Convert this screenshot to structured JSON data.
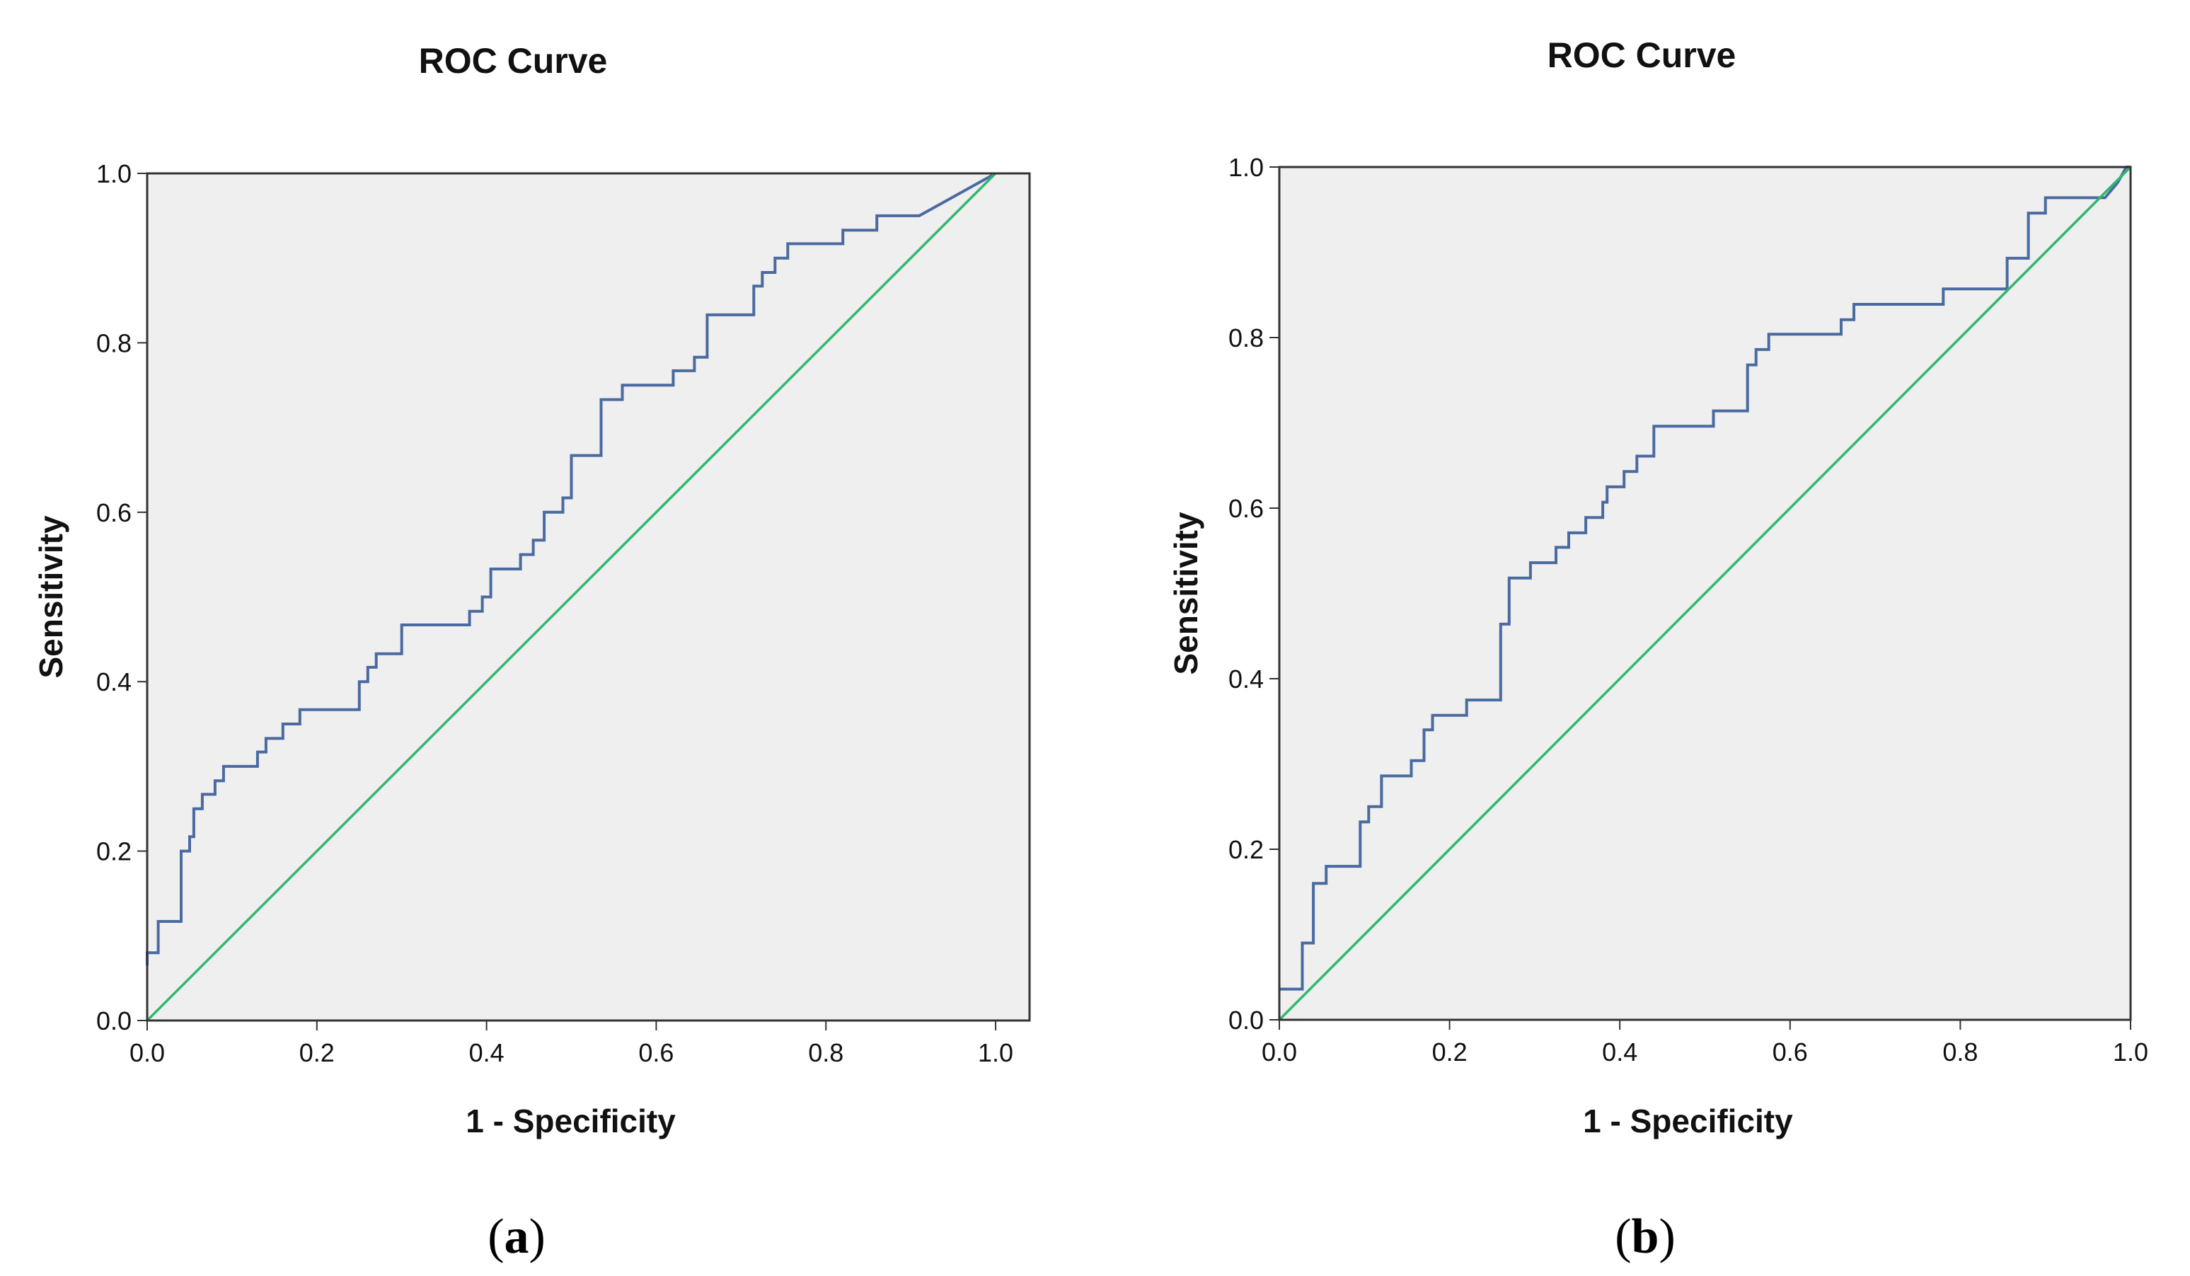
{
  "colors": {
    "plot_background": "#efefef",
    "frame": "#333333",
    "roc_curve": "#4a6aa0",
    "reference_line": "#2fb86e"
  },
  "chart_data": [
    {
      "type": "line",
      "panel": "(a)",
      "panel_letter": "a",
      "title": "ROC Curve",
      "xlabel": "1 - Specificity",
      "ylabel": "Sensitivity",
      "xlim": [
        0,
        1.04
      ],
      "ylim": [
        0,
        1
      ],
      "xticks": [
        "0.0",
        "0.2",
        "0.4",
        "0.6",
        "0.8",
        "1.0"
      ],
      "yticks": [
        "0.0",
        "0.2",
        "0.4",
        "0.6",
        "0.8",
        "1.0"
      ],
      "grid": false,
      "series": [
        {
          "name": "ROC curve",
          "x": [
            0.0,
            0.0,
            0.013,
            0.013,
            0.04,
            0.04,
            0.05,
            0.05,
            0.055,
            0.055,
            0.065,
            0.065,
            0.08,
            0.08,
            0.09,
            0.09,
            0.13,
            0.13,
            0.14,
            0.14,
            0.16,
            0.16,
            0.18,
            0.18,
            0.2,
            0.2,
            0.21,
            0.21,
            0.25,
            0.25,
            0.26,
            0.26,
            0.27,
            0.27,
            0.3,
            0.3,
            0.38,
            0.38,
            0.395,
            0.395,
            0.405,
            0.405,
            0.44,
            0.44,
            0.455,
            0.455,
            0.468,
            0.468,
            0.49,
            0.49,
            0.5,
            0.5,
            0.51,
            0.51,
            0.535,
            0.535,
            0.56,
            0.56,
            0.62,
            0.62,
            0.645,
            0.645,
            0.66,
            0.66,
            0.715,
            0.715,
            0.725,
            0.725,
            0.73,
            0.73,
            0.74,
            0.74,
            0.755,
            0.755,
            0.78,
            0.78,
            0.82,
            0.82,
            0.86,
            0.86,
            0.91,
            1.0
          ],
          "y": [
            0.065,
            0.08,
            0.08,
            0.117,
            0.117,
            0.2,
            0.2,
            0.217,
            0.217,
            0.25,
            0.25,
            0.267,
            0.267,
            0.283,
            0.283,
            0.3,
            0.3,
            0.317,
            0.317,
            0.333,
            0.333,
            0.35,
            0.35,
            0.367,
            0.367,
            0.367,
            0.367,
            0.367,
            0.367,
            0.4,
            0.4,
            0.417,
            0.417,
            0.433,
            0.433,
            0.467,
            0.467,
            0.483,
            0.483,
            0.5,
            0.5,
            0.533,
            0.533,
            0.55,
            0.55,
            0.567,
            0.567,
            0.6,
            0.6,
            0.617,
            0.617,
            0.667,
            0.667,
            0.667,
            0.667,
            0.733,
            0.733,
            0.75,
            0.75,
            0.767,
            0.767,
            0.783,
            0.783,
            0.833,
            0.833,
            0.867,
            0.867,
            0.883,
            0.883,
            0.883,
            0.883,
            0.9,
            0.9,
            0.917,
            0.917,
            0.917,
            0.917,
            0.933,
            0.933,
            0.95,
            0.95,
            1.0
          ]
        },
        {
          "name": "Reference line",
          "x": [
            0.0,
            1.0
          ],
          "y": [
            0.0,
            1.0
          ]
        }
      ]
    },
    {
      "type": "line",
      "panel": "(b)",
      "panel_letter": "b",
      "title": "ROC Curve",
      "xlabel": "1 - Specificity",
      "ylabel": "Sensitivity",
      "xlim": [
        0,
        1.0
      ],
      "ylim": [
        0,
        1
      ],
      "xticks": [
        "0.0",
        "0.2",
        "0.4",
        "0.6",
        "0.8",
        "1.0"
      ],
      "yticks": [
        "0.0",
        "0.2",
        "0.4",
        "0.6",
        "0.8",
        "1.0"
      ],
      "grid": false,
      "series": [
        {
          "name": "ROC curve",
          "x": [
            0.0,
            0.0,
            0.027,
            0.027,
            0.04,
            0.04,
            0.055,
            0.055,
            0.095,
            0.095,
            0.105,
            0.105,
            0.12,
            0.12,
            0.155,
            0.155,
            0.17,
            0.17,
            0.18,
            0.18,
            0.22,
            0.22,
            0.26,
            0.26,
            0.27,
            0.27,
            0.295,
            0.295,
            0.325,
            0.325,
            0.34,
            0.34,
            0.36,
            0.36,
            0.38,
            0.38,
            0.385,
            0.385,
            0.405,
            0.405,
            0.42,
            0.42,
            0.44,
            0.44,
            0.51,
            0.51,
            0.55,
            0.55,
            0.56,
            0.56,
            0.575,
            0.575,
            0.66,
            0.66,
            0.675,
            0.675,
            0.78,
            0.78,
            0.855,
            0.855,
            0.88,
            0.88,
            0.9,
            0.9,
            0.92,
            0.92,
            0.97,
            0.985,
            0.985,
            0.995,
            0.995,
            1.0
          ],
          "y": [
            0.036,
            0.036,
            0.036,
            0.09,
            0.09,
            0.16,
            0.16,
            0.18,
            0.18,
            0.232,
            0.232,
            0.25,
            0.25,
            0.286,
            0.286,
            0.304,
            0.304,
            0.34,
            0.34,
            0.357,
            0.357,
            0.375,
            0.375,
            0.464,
            0.464,
            0.518,
            0.518,
            0.536,
            0.536,
            0.554,
            0.554,
            0.571,
            0.571,
            0.589,
            0.589,
            0.607,
            0.607,
            0.625,
            0.625,
            0.643,
            0.643,
            0.661,
            0.661,
            0.696,
            0.696,
            0.714,
            0.714,
            0.768,
            0.768,
            0.786,
            0.786,
            0.804,
            0.804,
            0.821,
            0.821,
            0.839,
            0.839,
            0.857,
            0.857,
            0.893,
            0.893,
            0.946,
            0.946,
            0.964,
            0.964,
            0.964,
            0.964,
            0.982,
            0.982,
            1.0,
            1.0,
            1.0
          ]
        },
        {
          "name": "Reference line",
          "x": [
            0.0,
            1.0
          ],
          "y": [
            0.0,
            1.0
          ]
        }
      ]
    }
  ]
}
